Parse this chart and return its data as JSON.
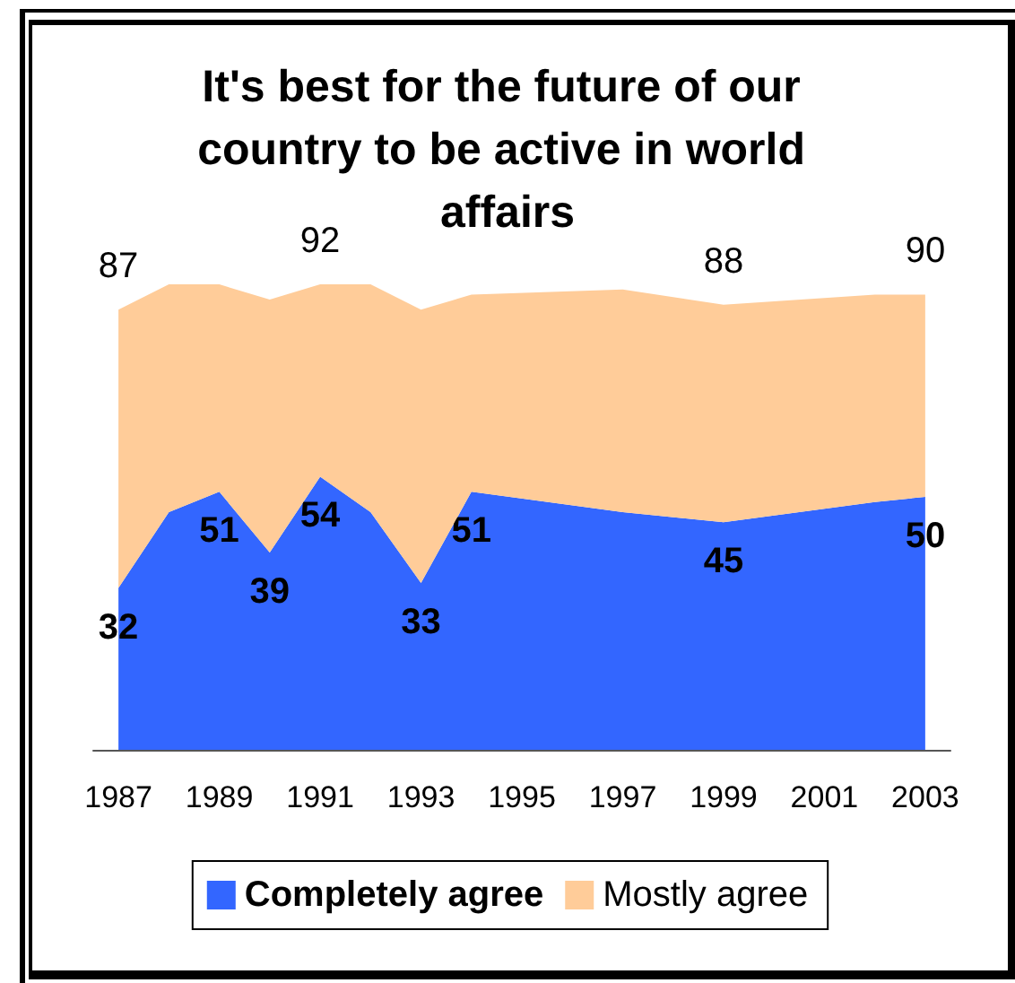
{
  "chart_data": {
    "type": "area",
    "title": "It's best for the future of our country to be active in world affairs",
    "x": [
      1987,
      1988,
      1989,
      1990,
      1991,
      1992,
      1993,
      1994,
      1997,
      1999,
      2002,
      2003
    ],
    "xlim": [
      1986.5,
      2003.5
    ],
    "xticks": [
      1987,
      1989,
      1991,
      1993,
      1995,
      1997,
      1999,
      2001,
      2003
    ],
    "stacked": true,
    "series": [
      {
        "name": "Completely agree",
        "color": "#3366ff",
        "values": [
          32,
          47,
          51,
          39,
          54,
          47,
          33,
          51,
          47,
          45,
          49,
          50
        ],
        "value_labels": [
          "32",
          null,
          "51",
          "39",
          "54",
          null,
          "33",
          "51",
          null,
          "45",
          null,
          "50"
        ]
      },
      {
        "name": "Mostly agree",
        "color": "#ffcc99",
        "values": [
          55,
          45,
          41,
          50,
          38,
          45,
          54,
          39,
          44,
          43,
          41,
          40
        ]
      }
    ],
    "totals": [
      "87",
      null,
      null,
      null,
      "92",
      null,
      null,
      null,
      null,
      "88",
      null,
      "90"
    ],
    "tick_labels": "x",
    "grid": false,
    "legend": "bottom"
  }
}
